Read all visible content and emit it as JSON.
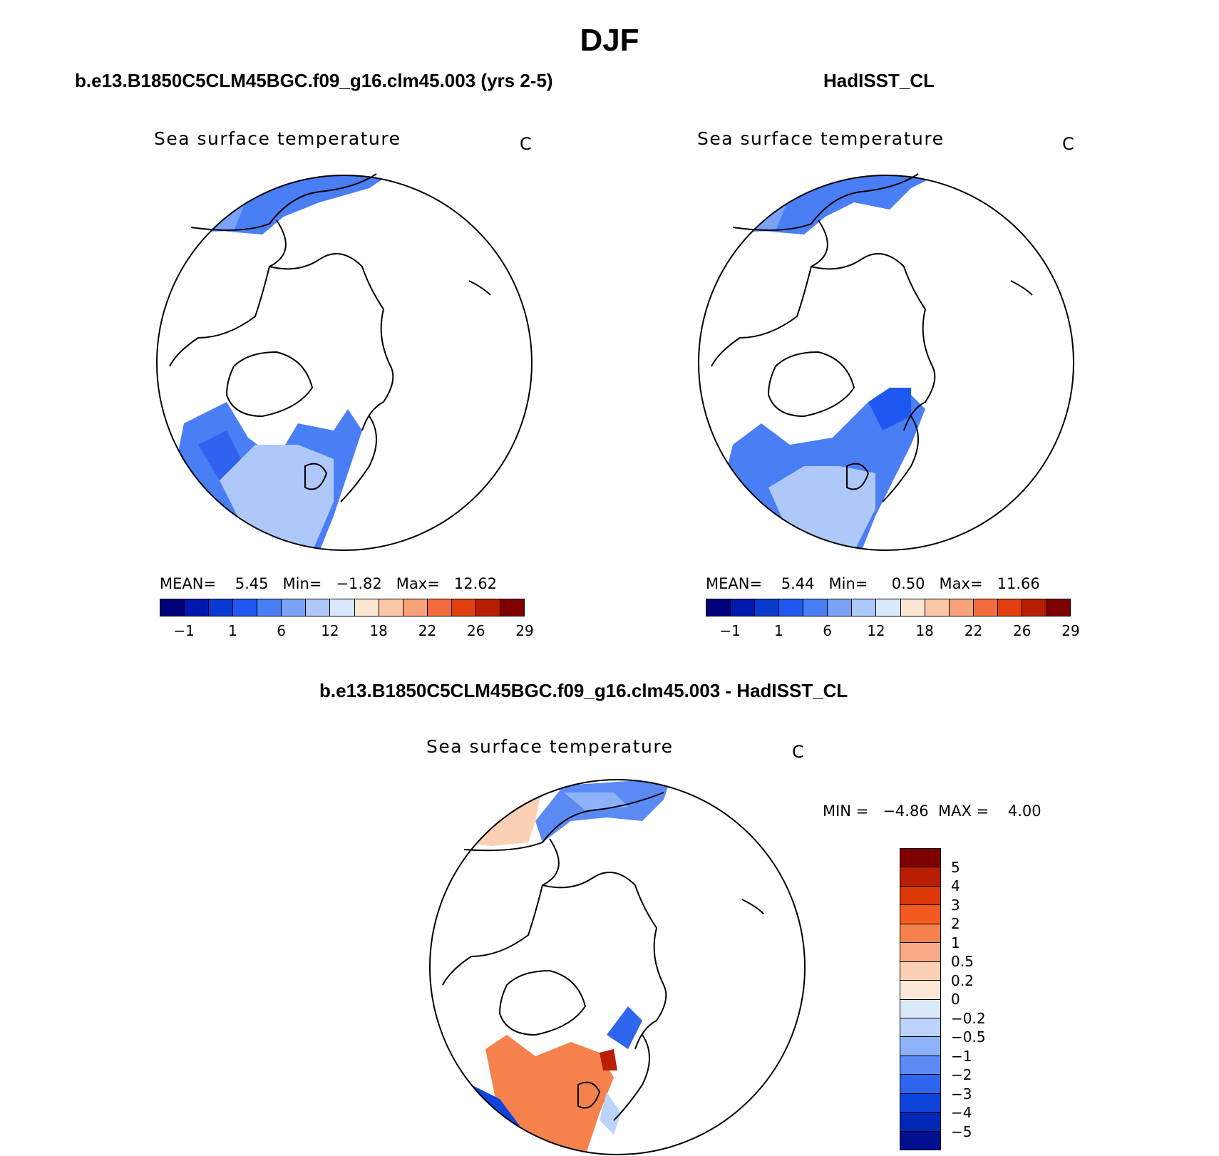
{
  "title": "DJF",
  "panels": [
    {
      "title": "b.e13.B1850C5CLM45BGC.f09_g16.clm45.003 (yrs 2-5)",
      "variable": "Sea surface temperature",
      "units": "C",
      "stats": "MEAN=    5.45   Min=   −1.82   Max=   12.62"
    },
    {
      "title": "HadISST_CL",
      "variable": "Sea surface temperature",
      "units": "C",
      "stats": "MEAN=    5.44   Min=     0.50   Max=   11.66"
    },
    {
      "title": "b.e13.B1850C5CLM45BGC.f09_g16.clm45.003 - HadISST_CL",
      "variable": "Sea surface temperature",
      "units": "C",
      "stats": "MIN =   −4.86  MAX =    4.00"
    }
  ],
  "colorbar_abs": {
    "colors": [
      "#00007a",
      "#0018b0",
      "#0a3ad0",
      "#1e58f0",
      "#4a7ef5",
      "#7aa3f7",
      "#aec8fa",
      "#d9e9fb",
      "#fde6d2",
      "#fbc7a6",
      "#f8a27a",
      "#f26c40",
      "#e04010",
      "#b81e04",
      "#7f0000"
    ],
    "ticks": [
      "−1",
      "1",
      "6",
      "12",
      "18",
      "22",
      "26",
      "29"
    ]
  },
  "colorbar_diff": {
    "colors": [
      "#7f0000",
      "#b81e04",
      "#dd3808",
      "#f25a20",
      "#f5824c",
      "#f8aa84",
      "#fbd1b6",
      "#fde9da",
      "#dbe9fb",
      "#bcd3fb",
      "#8eb2f8",
      "#5a8af4",
      "#2f66ee",
      "#0f44dc",
      "#0328b8",
      "#001090"
    ],
    "ticks": [
      "5",
      "4",
      "3",
      "2",
      "1",
      "0.5",
      "0.2",
      "0",
      "−0.2",
      "−0.5",
      "−1",
      "−2",
      "−3",
      "−4",
      "−5"
    ]
  },
  "colors": {
    "land_outline": "#000000",
    "ocean_cold": "#4a7ef5",
    "ocean_cool": "#aec8fa",
    "warm_anomaly": "#f5824c"
  }
}
